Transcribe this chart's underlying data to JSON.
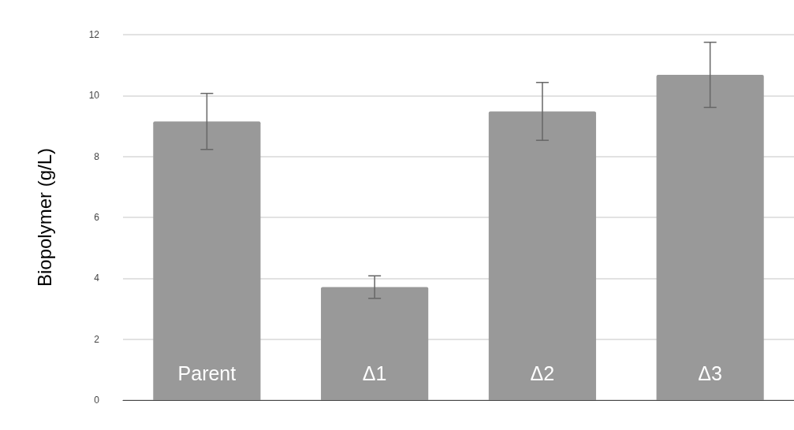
{
  "chart_data": {
    "type": "bar",
    "ylabel": "Biopolymer (g/L)",
    "categories": [
      "Parent",
      "Δ1",
      "Δ2",
      "Δ3"
    ],
    "values": [
      9.15,
      3.71,
      9.48,
      10.68
    ],
    "errors": [
      0.92,
      0.37,
      0.95,
      1.07
    ],
    "color": "#999999",
    "ylim": [
      0,
      12
    ],
    "yticks": [
      0,
      2,
      4,
      6,
      8,
      10,
      12
    ],
    "grid": "y"
  }
}
